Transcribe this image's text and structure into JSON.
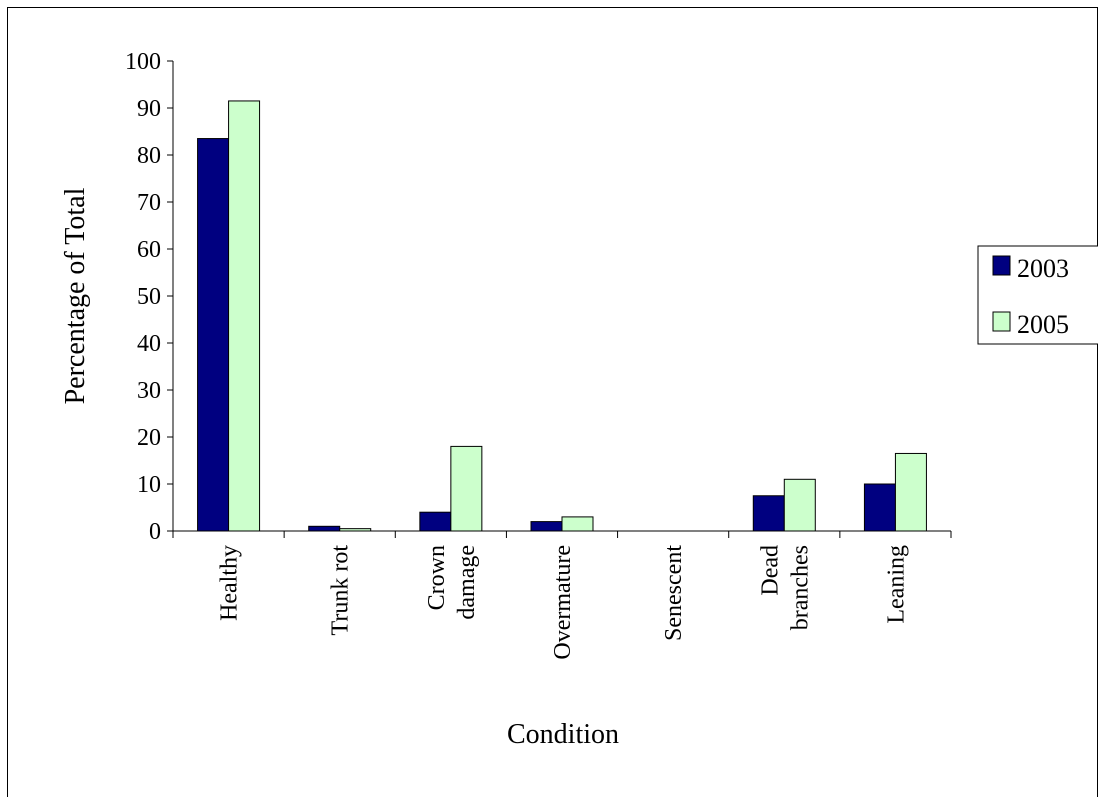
{
  "chart_data": {
    "type": "bar",
    "title": "",
    "xlabel": "Condition",
    "ylabel": "Percentage of Total",
    "ylim": [
      0,
      100
    ],
    "yticks": [
      0,
      10,
      20,
      30,
      40,
      50,
      60,
      70,
      80,
      90,
      100
    ],
    "categories": [
      [
        "Healthy"
      ],
      [
        "Trunk rot"
      ],
      [
        "Crown",
        "damage"
      ],
      [
        "Overmature"
      ],
      [
        "Senescent"
      ],
      [
        "Dead",
        "branches"
      ],
      [
        "Leaning"
      ]
    ],
    "series": [
      {
        "name": "2003",
        "color": "#000080",
        "values": [
          83.5,
          1,
          4,
          2,
          0,
          7.5,
          10
        ]
      },
      {
        "name": "2005",
        "color": "#ccffcc",
        "values": [
          91.5,
          0.5,
          18,
          3,
          0,
          11,
          16.5
        ]
      }
    ],
    "grid": false,
    "legend": "right"
  }
}
